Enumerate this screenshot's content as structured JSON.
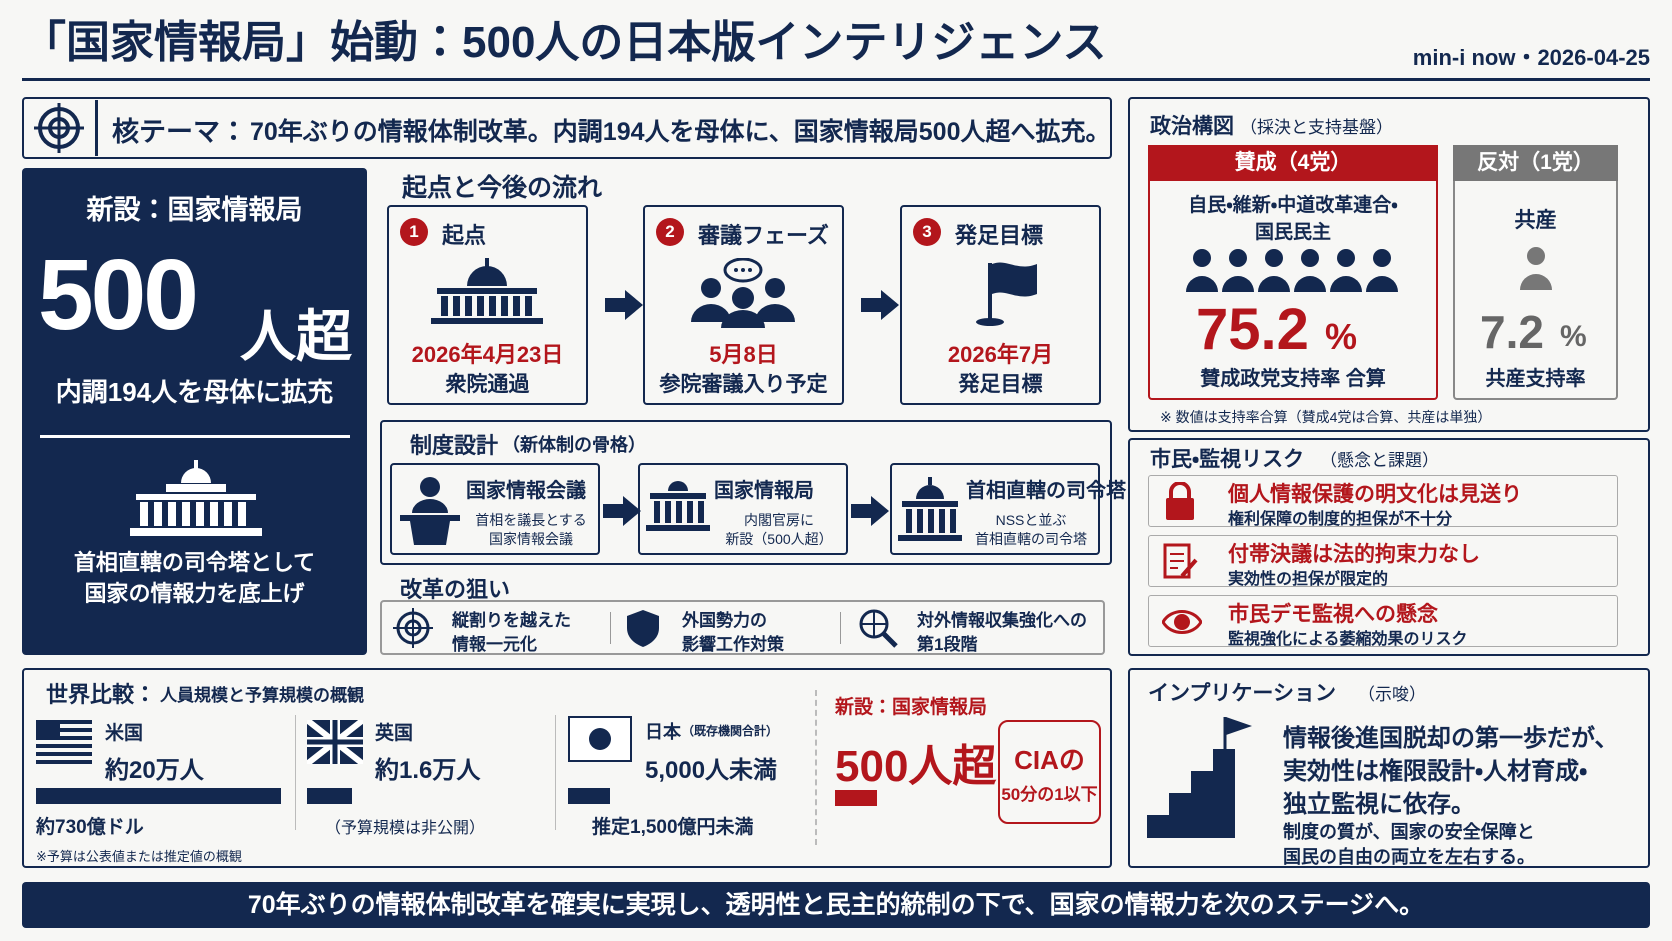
{
  "header": {
    "title": "「国家情報局」始動：500人の日本版インテリジェンス",
    "source": "min-i now・2026-04-25"
  },
  "theme": {
    "label": "核テーマ：",
    "text": "70年ぶりの情報体制改革。内調194人を母体に、国家情報局500人超へ拡充。"
  },
  "hero": {
    "label": "新設：国家情報局",
    "number": "500",
    "unit": "人超",
    "sub": "内調194人を母体に拡充",
    "desc": [
      "首相直轄の司令塔として",
      "国家の情報力を底上げ"
    ]
  },
  "flow": {
    "title": "起点と今後の流れ",
    "steps": [
      {
        "num": "1",
        "title": "起点",
        "date": "2026年4月23日",
        "note": "衆院通過"
      },
      {
        "num": "2",
        "title": "審議フェーズ",
        "date": "5月8日",
        "note": "参院審議入り予定"
      },
      {
        "num": "3",
        "title": "発足目標",
        "date": "2026年7月",
        "note": "発足目標"
      }
    ]
  },
  "design": {
    "title": "制度設計",
    "subtitle": "（新体制の骨格）",
    "items": [
      {
        "title": "国家情報会議",
        "desc": [
          "首相を議長とする",
          "国家情報会議"
        ]
      },
      {
        "title": "国家情報局",
        "desc": [
          "内閣官房に",
          "新設（500人超）"
        ]
      },
      {
        "title": "首相直轄の司令塔",
        "desc": [
          "NSSと並ぶ",
          "首相直轄の司令塔"
        ]
      }
    ]
  },
  "aims": {
    "title": "改革の狙い",
    "items": [
      [
        "縦割りを越えた",
        "情報一元化"
      ],
      [
        "外国勢力の",
        "影響工作対策"
      ],
      [
        "対外情報収集強化への",
        "第1段階"
      ]
    ]
  },
  "politics": {
    "title": "政治構図",
    "subtitle": "（採決と支持基盤）",
    "for": {
      "label": "賛成（4党）",
      "parties": [
        "自民・維新・中道改革連合・",
        "国民民主"
      ],
      "rate": "75.2",
      "unit": "%",
      "caption": "賛成政党支持率 合算"
    },
    "against": {
      "label": "反対（1党）",
      "parties": [
        "共産"
      ],
      "rate": "7.2",
      "unit": "%",
      "caption": "共産支持率"
    },
    "note": "※ 数値は支持率合算（賛成4党は合算、共産は単独）"
  },
  "risks": {
    "title": "市民・監視リスク",
    "subtitle": "（懸念と課題）",
    "items": [
      {
        "title": "個人情報保護の明文化は見送り",
        "desc": "権利保障の制度的担保が不十分"
      },
      {
        "title": "付帯決議は法的拘束力なし",
        "desc": "実効性の担保が限定的"
      },
      {
        "title": "市民デモ監視への懸念",
        "desc": "監視強化による萎縮効果のリスク"
      }
    ]
  },
  "comparison": {
    "title": "世界比較：",
    "subtitle": "人員規模と予算規模の概観",
    "countries": [
      {
        "name": "米国",
        "staff": "約20万人",
        "budget": "約730億ドル"
      },
      {
        "name": "英国",
        "staff": "約1.6万人",
        "budget": "（予算規模は非公開）"
      },
      {
        "name": "日本",
        "qualifier": "（既存機関合計）",
        "staff": "5,000人未満",
        "budget": "推定1,500億円未満"
      }
    ],
    "new": {
      "label": "新設：国家情報局",
      "staff": "500人超",
      "cia": [
        "CIAの",
        "50分の1以下"
      ]
    },
    "note": "※予算は公表値または推定値の概観"
  },
  "implication": {
    "title": "インプリケーション",
    "subtitle": "（示唆）",
    "main": [
      "情報後進国脱却の第一歩だが、",
      "実効性は権限設計・人材育成・",
      "独立監視に依存。"
    ],
    "sub": [
      "制度の質が、国家の安全保障と",
      "国民の自由の両立を左右する。"
    ]
  },
  "footer": "70年ぶりの情報体制改革を確実に実現し、透明性と民主的統制の下で、国家の情報力を次のステージへ。"
}
